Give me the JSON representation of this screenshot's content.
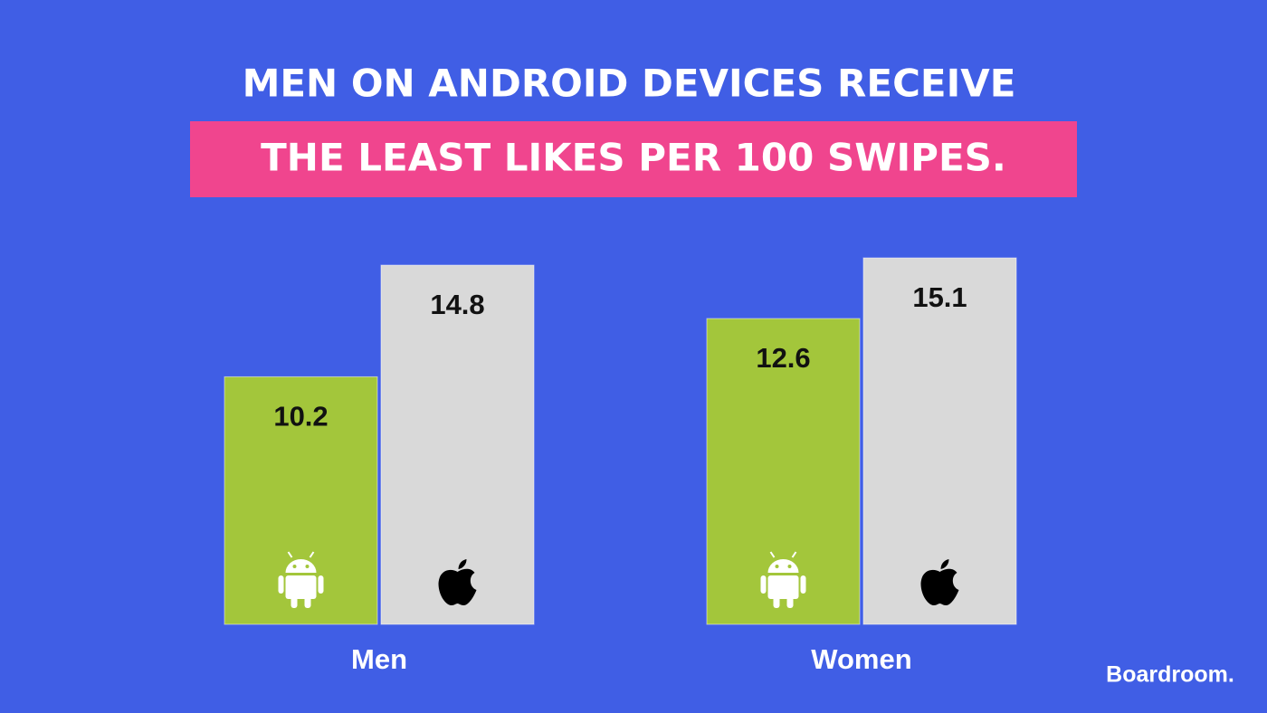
{
  "chart_data": {
    "type": "bar",
    "title": "MEN ON ANDROID DEVICES RECEIVE",
    "subtitle": "THE LEAST LIKES PER 100 SWIPES.",
    "categories": [
      "Men",
      "Women"
    ],
    "series": [
      {
        "color": "#a3c63b",
        "values": [
          10.2,
          12.6
        ]
      },
      {
        "color": "#d9d9d9",
        "values": [
          14.8,
          15.1
        ]
      }
    ],
    "brand": "Boardroom."
  }
}
